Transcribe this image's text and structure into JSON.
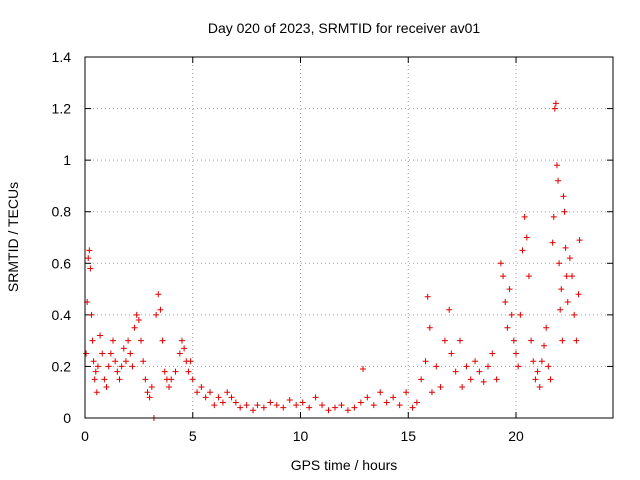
{
  "chart_data": {
    "type": "scatter",
    "title": "Day 020 of 2023, SRMTID for receiver av01",
    "xlabel": "GPS time / hours",
    "ylabel": "SRMTID / TECUs",
    "xlim": [
      0,
      24.5
    ],
    "ylim": [
      0,
      1.4
    ],
    "x_ticks": [
      0,
      5,
      10,
      15,
      20
    ],
    "x_tick_labels": [
      "0",
      "5",
      "10",
      "15",
      "20"
    ],
    "y_ticks": [
      0,
      0.2,
      0.4,
      0.6,
      0.8,
      1.0,
      1.2,
      1.4
    ],
    "y_tick_labels": [
      "0",
      "0.2",
      "0.4",
      "0.6",
      "0.8",
      "1",
      "1.2",
      "1.4"
    ],
    "grid": true,
    "marker": "+",
    "series": [
      {
        "name": "av01",
        "color": "#e00000",
        "points": [
          [
            0.05,
            0.25
          ],
          [
            0.1,
            0.45
          ],
          [
            0.15,
            0.62
          ],
          [
            0.2,
            0.65
          ],
          [
            0.25,
            0.58
          ],
          [
            0.3,
            0.4
          ],
          [
            0.35,
            0.3
          ],
          [
            0.4,
            0.22
          ],
          [
            0.45,
            0.15
          ],
          [
            0.5,
            0.18
          ],
          [
            0.55,
            0.1
          ],
          [
            0.6,
            0.2
          ],
          [
            0.7,
            0.32
          ],
          [
            0.8,
            0.25
          ],
          [
            0.9,
            0.15
          ],
          [
            1.0,
            0.12
          ],
          [
            1.1,
            0.2
          ],
          [
            1.2,
            0.25
          ],
          [
            1.3,
            0.3
          ],
          [
            1.4,
            0.22
          ],
          [
            1.5,
            0.18
          ],
          [
            1.6,
            0.15
          ],
          [
            1.7,
            0.2
          ],
          [
            1.8,
            0.27
          ],
          [
            1.9,
            0.22
          ],
          [
            2.0,
            0.3
          ],
          [
            2.1,
            0.25
          ],
          [
            2.2,
            0.2
          ],
          [
            2.3,
            0.35
          ],
          [
            2.4,
            0.4
          ],
          [
            2.5,
            0.38
          ],
          [
            2.6,
            0.3
          ],
          [
            2.7,
            0.22
          ],
          [
            2.8,
            0.15
          ],
          [
            2.9,
            0.1
          ],
          [
            3.0,
            0.08
          ],
          [
            3.1,
            0.12
          ],
          [
            3.2,
            0.0
          ],
          [
            3.3,
            0.4
          ],
          [
            3.4,
            0.48
          ],
          [
            3.5,
            0.42
          ],
          [
            3.6,
            0.3
          ],
          [
            3.7,
            0.18
          ],
          [
            3.8,
            0.15
          ],
          [
            3.9,
            0.12
          ],
          [
            4.0,
            0.15
          ],
          [
            4.2,
            0.18
          ],
          [
            4.4,
            0.25
          ],
          [
            4.5,
            0.3
          ],
          [
            4.6,
            0.27
          ],
          [
            4.7,
            0.22
          ],
          [
            4.8,
            0.18
          ],
          [
            4.9,
            0.22
          ],
          [
            5.0,
            0.15
          ],
          [
            5.2,
            0.1
          ],
          [
            5.4,
            0.12
          ],
          [
            5.6,
            0.08
          ],
          [
            5.8,
            0.1
          ],
          [
            6.0,
            0.05
          ],
          [
            6.2,
            0.08
          ],
          [
            6.4,
            0.06
          ],
          [
            6.6,
            0.1
          ],
          [
            6.8,
            0.08
          ],
          [
            7.0,
            0.06
          ],
          [
            7.2,
            0.04
          ],
          [
            7.5,
            0.05
          ],
          [
            7.8,
            0.03
          ],
          [
            8.0,
            0.05
          ],
          [
            8.3,
            0.04
          ],
          [
            8.6,
            0.06
          ],
          [
            8.9,
            0.05
          ],
          [
            9.2,
            0.04
          ],
          [
            9.5,
            0.07
          ],
          [
            9.8,
            0.05
          ],
          [
            10.1,
            0.06
          ],
          [
            10.4,
            0.04
          ],
          [
            10.7,
            0.08
          ],
          [
            11.0,
            0.05
          ],
          [
            11.3,
            0.03
          ],
          [
            11.6,
            0.04
          ],
          [
            11.9,
            0.05
          ],
          [
            12.2,
            0.03
          ],
          [
            12.5,
            0.04
          ],
          [
            12.8,
            0.06
          ],
          [
            12.9,
            0.19
          ],
          [
            13.1,
            0.08
          ],
          [
            13.4,
            0.05
          ],
          [
            13.7,
            0.1
          ],
          [
            14.0,
            0.06
          ],
          [
            14.3,
            0.08
          ],
          [
            14.6,
            0.05
          ],
          [
            14.9,
            0.1
          ],
          [
            15.2,
            0.04
          ],
          [
            15.4,
            0.06
          ],
          [
            15.6,
            0.15
          ],
          [
            15.8,
            0.22
          ],
          [
            15.9,
            0.47
          ],
          [
            16.0,
            0.35
          ],
          [
            16.1,
            0.1
          ],
          [
            16.3,
            0.2
          ],
          [
            16.5,
            0.12
          ],
          [
            16.7,
            0.3
          ],
          [
            16.9,
            0.42
          ],
          [
            17.0,
            0.25
          ],
          [
            17.2,
            0.18
          ],
          [
            17.4,
            0.3
          ],
          [
            17.5,
            0.12
          ],
          [
            17.7,
            0.2
          ],
          [
            17.9,
            0.15
          ],
          [
            18.1,
            0.22
          ],
          [
            18.3,
            0.18
          ],
          [
            18.5,
            0.14
          ],
          [
            18.7,
            0.2
          ],
          [
            18.9,
            0.25
          ],
          [
            19.1,
            0.15
          ],
          [
            19.3,
            0.6
          ],
          [
            19.4,
            0.55
          ],
          [
            19.5,
            0.45
          ],
          [
            19.6,
            0.35
          ],
          [
            19.7,
            0.5
          ],
          [
            19.8,
            0.4
          ],
          [
            19.9,
            0.3
          ],
          [
            20.0,
            0.25
          ],
          [
            20.1,
            0.2
          ],
          [
            20.2,
            0.4
          ],
          [
            20.3,
            0.65
          ],
          [
            20.4,
            0.78
          ],
          [
            20.5,
            0.7
          ],
          [
            20.6,
            0.55
          ],
          [
            20.7,
            0.3
          ],
          [
            20.8,
            0.22
          ],
          [
            20.9,
            0.15
          ],
          [
            21.0,
            0.18
          ],
          [
            21.1,
            0.12
          ],
          [
            21.2,
            0.22
          ],
          [
            21.3,
            0.28
          ],
          [
            21.4,
            0.35
          ],
          [
            21.5,
            0.2
          ],
          [
            21.6,
            0.15
          ],
          [
            21.7,
            0.68
          ],
          [
            21.75,
            0.78
          ],
          [
            21.8,
            1.2
          ],
          [
            21.85,
            1.22
          ],
          [
            21.9,
            0.98
          ],
          [
            21.95,
            0.92
          ],
          [
            22.0,
            0.6
          ],
          [
            22.05,
            0.42
          ],
          [
            22.1,
            0.5
          ],
          [
            22.15,
            0.3
          ],
          [
            22.2,
            0.86
          ],
          [
            22.25,
            0.8
          ],
          [
            22.3,
            0.66
          ],
          [
            22.35,
            0.55
          ],
          [
            22.4,
            0.45
          ],
          [
            22.5,
            0.62
          ],
          [
            22.6,
            0.55
          ],
          [
            22.7,
            0.4
          ],
          [
            22.8,
            0.3
          ],
          [
            22.9,
            0.48
          ],
          [
            22.95,
            0.69
          ]
        ]
      }
    ]
  }
}
